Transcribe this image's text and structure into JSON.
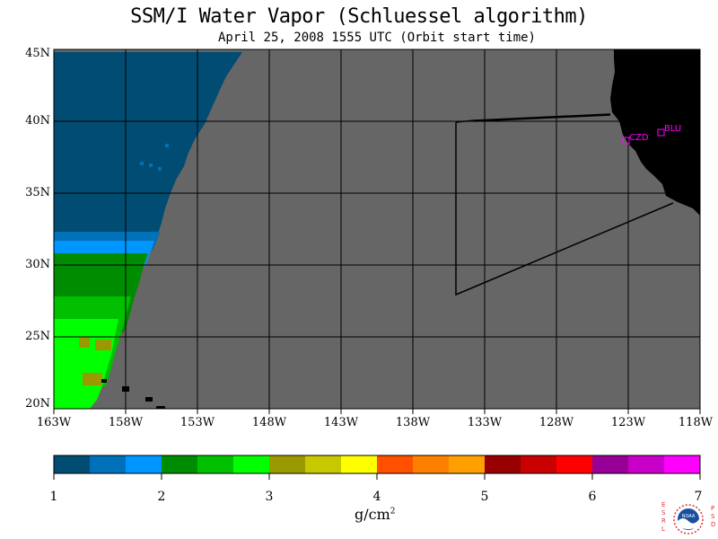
{
  "title": "SSM/I Water Vapor (Schluessel algorithm)",
  "subtitle": "April 25, 2008  1555 UTC  (Orbit start time)",
  "map": {
    "lat_labels": [
      "45N",
      "40N",
      "35N",
      "30N",
      "25N",
      "20N"
    ],
    "lon_labels": [
      "163W",
      "158W",
      "153W",
      "148W",
      "143W",
      "138W",
      "133W",
      "128W",
      "123W",
      "118W"
    ],
    "stations": [
      {
        "id": "CZD",
        "label": "CZD"
      },
      {
        "id": "BLU",
        "label": "BLU"
      }
    ],
    "colors": {
      "no_data": "#666666",
      "land": "#000000",
      "station": "#ff00ff"
    }
  },
  "colorbar": {
    "tick_labels": [
      "1",
      "2",
      "3",
      "4",
      "5",
      "6",
      "7"
    ],
    "units_base": "g/cm",
    "units_exp": "2",
    "colors": [
      "#004c73",
      "#0070b8",
      "#0096ff",
      "#008c00",
      "#00c000",
      "#00ff00",
      "#9a9a00",
      "#c8c800",
      "#ffff00",
      "#ff5000",
      "#ff8000",
      "#ffa000",
      "#960000",
      "#c80000",
      "#ff0000",
      "#960096",
      "#c800c8",
      "#ff00ff"
    ]
  },
  "logo": {
    "left_text": "ESRL",
    "right_text": "PSD",
    "center_text": "NOAA"
  }
}
